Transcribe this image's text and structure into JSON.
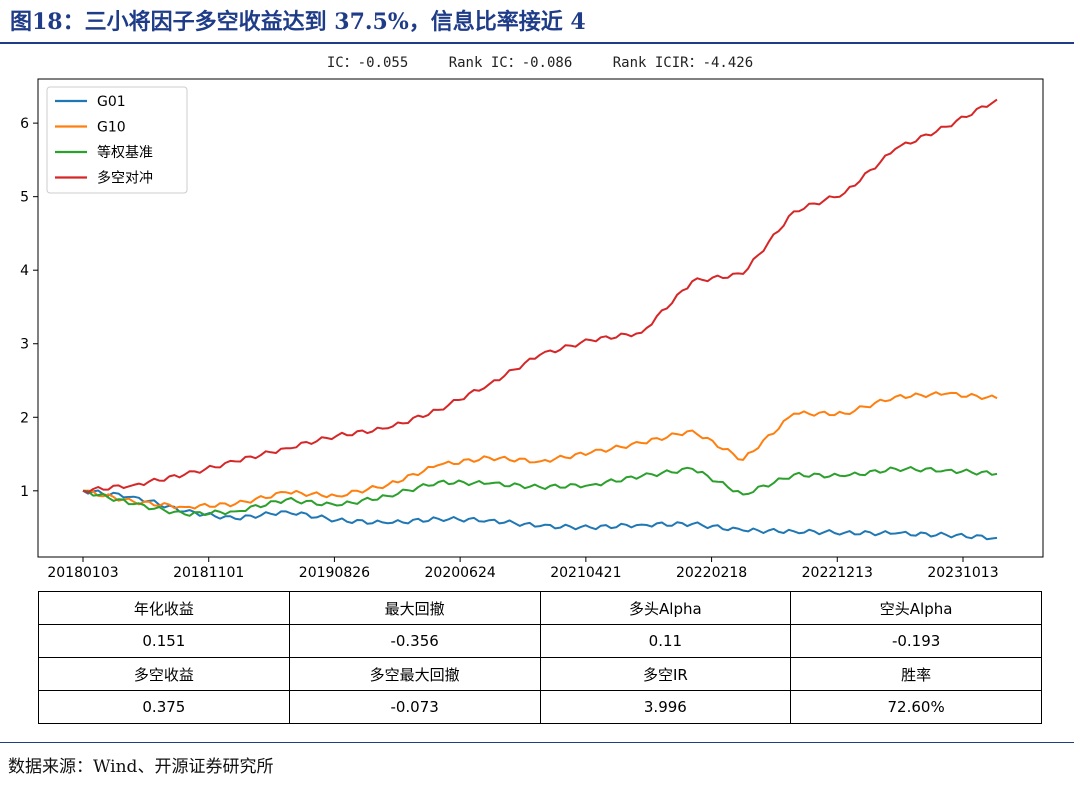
{
  "figure": {
    "title": "图18：三小将因子多空收益达到 37.5%，信息比率接近 4",
    "source": "数据来源：Wind、开源证券研究所"
  },
  "stats": {
    "ic": "IC：-0.055",
    "rank_ic": "Rank IC：-0.086",
    "rank_icir": "Rank ICIR：-4.426"
  },
  "chart_data": {
    "type": "line",
    "title": "",
    "xlabel": "",
    "ylabel": "",
    "x_ticks": [
      "20180103",
      "20181101",
      "20190826",
      "20200624",
      "20210421",
      "20220218",
      "20221213",
      "20231013"
    ],
    "y_ticks": [
      1,
      2,
      3,
      4,
      5,
      6
    ],
    "ylim": [
      0.1,
      6.6
    ],
    "grid": false,
    "legend_position": "top-left",
    "x": [
      "2018-01",
      "2018-05",
      "2018-09",
      "2019-01",
      "2019-05",
      "2019-09",
      "2020-01",
      "2020-05",
      "2020-09",
      "2021-01",
      "2021-05",
      "2021-09",
      "2022-01",
      "2022-05",
      "2022-09",
      "2023-01",
      "2023-05",
      "2023-09",
      "2023-12"
    ],
    "series": [
      {
        "name": "G01",
        "color": "#1f77b4",
        "values": [
          1.0,
          0.92,
          0.72,
          0.62,
          0.72,
          0.6,
          0.56,
          0.62,
          0.6,
          0.52,
          0.5,
          0.54,
          0.55,
          0.46,
          0.45,
          0.43,
          0.42,
          0.4,
          0.36
        ]
      },
      {
        "name": "G10",
        "color": "#ff7f0e",
        "values": [
          1.0,
          0.85,
          0.78,
          0.82,
          0.98,
          0.93,
          1.08,
          1.35,
          1.45,
          1.4,
          1.52,
          1.65,
          1.82,
          1.42,
          2.05,
          2.05,
          2.28,
          2.32,
          2.26
        ]
      },
      {
        "name": "等权基准",
        "color": "#2ca02c",
        "values": [
          1.0,
          0.82,
          0.68,
          0.72,
          0.88,
          0.8,
          0.93,
          1.12,
          1.1,
          1.05,
          1.08,
          1.2,
          1.3,
          0.95,
          1.22,
          1.2,
          1.3,
          1.28,
          1.23
        ]
      },
      {
        "name": "多空对冲",
        "color": "#d62728",
        "values": [
          1.0,
          1.08,
          1.22,
          1.4,
          1.58,
          1.75,
          1.85,
          2.1,
          2.45,
          2.85,
          3.05,
          3.15,
          3.85,
          3.95,
          4.8,
          5.05,
          5.65,
          5.95,
          6.32
        ]
      }
    ]
  },
  "table": {
    "rows": [
      [
        "年化收益",
        "最大回撤",
        "多头Alpha",
        "空头Alpha"
      ],
      [
        "0.151",
        "-0.356",
        "0.11",
        "-0.193"
      ],
      [
        "多空收益",
        "多空最大回撤",
        "多空IR",
        "胜率"
      ],
      [
        "0.375",
        "-0.073",
        "3.996",
        "72.60%"
      ]
    ]
  }
}
